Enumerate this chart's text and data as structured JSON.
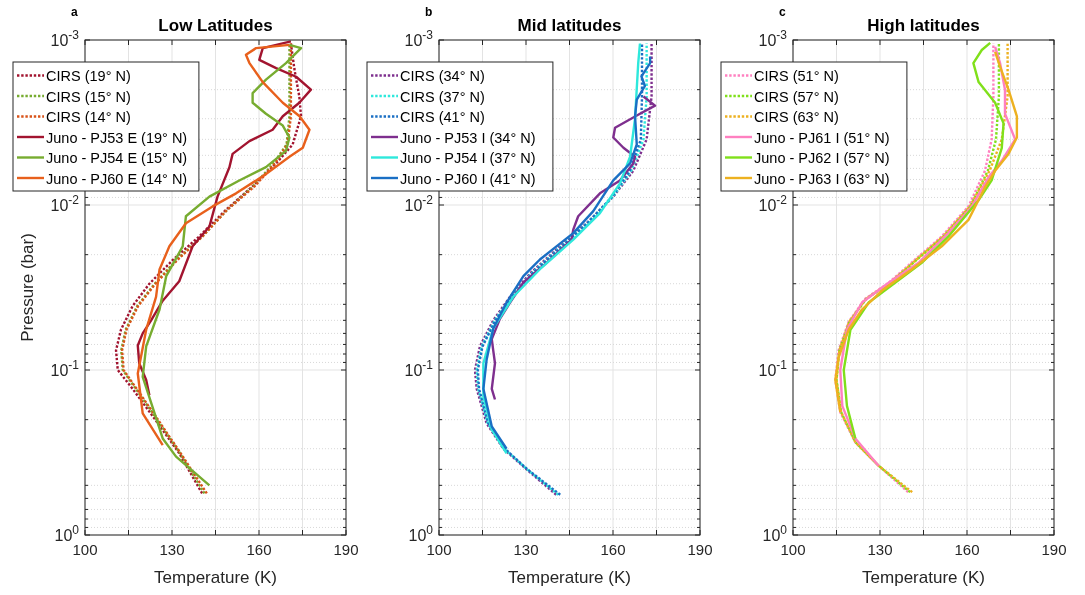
{
  "chart_data": [
    {
      "type": "line",
      "title": "Low Latitudes",
      "xlabel": "Temperature (K)",
      "ylabel": "Pressure (bar)",
      "annotations": [
        "a"
      ],
      "log": "y",
      "grid": true,
      "legend": "top left",
      "xlim": [
        100,
        190
      ],
      "xticks": [
        100,
        {
          "value": 115,
          "label": null
        },
        130,
        {
          "value": 145,
          "label": null
        },
        160,
        {
          "value": 175,
          "label": null
        },
        190
      ],
      "ylim": [
        1,
        0.001
      ],
      "yticks": [
        {
          "value": 0.001,
          "label": "10$^{-3}$"
        },
        {
          "value": 0.002,
          "label": null
        },
        {
          "value": 0.003,
          "label": null
        },
        {
          "value": 0.004,
          "label": null
        },
        {
          "value": 0.005,
          "label": null
        },
        {
          "value": 0.006,
          "label": null
        },
        {
          "value": 0.007,
          "label": null
        },
        {
          "value": 0.008,
          "label": null
        },
        {
          "value": 0.009,
          "label": null
        },
        {
          "value": 0.01,
          "label": "10$^{-2}$"
        },
        {
          "value": 0.02,
          "label": null
        },
        {
          "value": 0.03,
          "label": null
        },
        {
          "value": 0.04,
          "label": null
        },
        {
          "value": 0.05,
          "label": null
        },
        {
          "value": 0.06,
          "label": null
        },
        {
          "value": 0.07,
          "label": null
        },
        {
          "value": 0.08,
          "label": null
        },
        {
          "value": 0.09,
          "label": null
        },
        {
          "value": 0.1,
          "label": "10$^{-1}$"
        },
        {
          "value": 0.2,
          "label": null
        },
        {
          "value": 0.3,
          "label": null
        },
        {
          "value": 0.4,
          "label": null
        },
        {
          "value": 0.5,
          "label": null
        },
        {
          "value": 0.6,
          "label": null
        },
        {
          "value": 0.7,
          "label": null
        },
        {
          "value": 0.8,
          "label": null
        },
        {
          "value": 0.9,
          "label": null
        },
        {
          "value": 1,
          "label": "10$^{0}$"
        }
      ],
      "series": [
        {
          "name": "CIRS (19° N)",
          "color": "#a2142f",
          "line_style": "dotted",
          "x": [
            140.4,
            132.5,
            123.3,
            116.4,
            111.3,
            110.7,
            112.4,
            116.4,
            122.2,
            130.2,
            139.4,
            148.6,
            157.8,
            165.9,
            171.6,
            174.5,
            173.9,
            172.2,
            171
          ],
          "values": [
            0.56,
            0.32,
            0.19,
            0.13,
            0.1,
            0.076,
            0.057,
            0.041,
            0.03,
            0.0216,
            0.0155,
            0.0107,
            0.0077,
            0.0056,
            0.0043,
            0.0029,
            0.0022,
            0.0015,
            0.00105
          ]
        },
        {
          "name": "CIRS (15° N)",
          "color": "#77ac30",
          "line_style": "dotted",
          "x": [
            141.2,
            132.8,
            124,
            117.5,
            113,
            112.5,
            114,
            118,
            124,
            131.5,
            140.5,
            149,
            158,
            165,
            169.5,
            170.5,
            170.5,
            170.5,
            170.5
          ],
          "values": [
            0.56,
            0.32,
            0.19,
            0.13,
            0.1,
            0.076,
            0.057,
            0.041,
            0.03,
            0.0216,
            0.0155,
            0.0107,
            0.0077,
            0.0056,
            0.0043,
            0.0029,
            0.0022,
            0.0015,
            0.00105
          ]
        },
        {
          "name": "CIRS (14° N)",
          "color": "#d95319",
          "line_style": "dotted",
          "x": [
            142,
            133,
            124.3,
            117.8,
            113.3,
            112.8,
            114.3,
            118.3,
            124.3,
            131.8,
            140.5,
            149,
            158.5,
            165.5,
            169.8,
            171,
            171,
            171,
            171
          ],
          "values": [
            0.56,
            0.32,
            0.19,
            0.13,
            0.1,
            0.076,
            0.057,
            0.041,
            0.03,
            0.0216,
            0.0155,
            0.0107,
            0.0077,
            0.0056,
            0.0043,
            0.0029,
            0.0022,
            0.0015,
            0.00105
          ]
        },
        {
          "name": "Juno - PJ53 E (19° N)",
          "color": "#a2142f",
          "line_style": "solid",
          "x": [
            122.2,
            121.1,
            118.7,
            118.2,
            119.9,
            122.8,
            126.8,
            132.5,
            137.1,
            142.9,
            145.7,
            149.8,
            150.9,
            156.7,
            164.7,
            168.2,
            173.9,
            177.9,
            172.8,
            165.9,
            160.1,
            161.3,
            171
          ],
          "values": [
            0.142,
            0.115,
            0.091,
            0.071,
            0.06,
            0.05,
            0.038,
            0.029,
            0.0178,
            0.0135,
            0.0089,
            0.0059,
            0.0049,
            0.0041,
            0.0035,
            0.0029,
            0.0024,
            0.002,
            0.00167,
            0.00148,
            0.00132,
            0.00112,
            0.00102
          ]
        },
        {
          "name": "Juno - PJ54 E (15° N)",
          "color": "#77ac30",
          "line_style": "solid",
          "x": [
            142.9,
            131.4,
            126.8,
            124,
            119.9,
            121.1,
            125.7,
            128,
            133.7,
            134.8,
            142.9,
            153.2,
            162.4,
            169.3,
            170.5,
            168.2,
            162.4,
            157.8,
            157.8,
            162.4,
            169.3,
            174.5,
            170.5
          ],
          "values": [
            0.5,
            0.335,
            0.26,
            0.183,
            0.11,
            0.072,
            0.043,
            0.027,
            0.0178,
            0.0117,
            0.0089,
            0.0071,
            0.0059,
            0.0047,
            0.0039,
            0.0033,
            0.0028,
            0.0024,
            0.0021,
            0.00174,
            0.00138,
            0.00112,
            0.00107
          ]
        },
        {
          "name": "Juno - PJ60 E (14° N)",
          "color": "#e8601c",
          "line_style": "solid",
          "x": [
            126.8,
            119.9,
            118.2,
            121.1,
            124.5,
            125.7,
            129.1,
            134.8,
            144,
            152.1,
            162.4,
            170.5,
            175.1,
            177.4,
            174,
            168.2,
            161.3,
            156.7,
            155.5,
            159,
            170.5
          ],
          "values": [
            0.285,
            0.183,
            0.105,
            0.057,
            0.036,
            0.0246,
            0.0178,
            0.0129,
            0.0102,
            0.0085,
            0.0065,
            0.0051,
            0.0045,
            0.0035,
            0.0029,
            0.0024,
            0.0018,
            0.00138,
            0.00123,
            0.00112,
            0.00107
          ]
        }
      ]
    },
    {
      "type": "line",
      "title": "Mid latitudes",
      "xlabel": "Temperature (K)",
      "annotations": [
        "b"
      ],
      "log": "y",
      "grid": true,
      "legend": "top left",
      "xlim": [
        100,
        190
      ],
      "xticks": [
        100,
        {
          "value": 115,
          "label": null
        },
        130,
        {
          "value": 145,
          "label": null
        },
        160,
        {
          "value": 175,
          "label": null
        },
        190
      ],
      "ylim": [
        1,
        0.001
      ],
      "yticks": [
        {
          "value": 0.001,
          "label": "10$^{-3}$"
        },
        {
          "value": 0.002,
          "label": null
        },
        {
          "value": 0.003,
          "label": null
        },
        {
          "value": 0.004,
          "label": null
        },
        {
          "value": 0.005,
          "label": null
        },
        {
          "value": 0.006,
          "label": null
        },
        {
          "value": 0.007,
          "label": null
        },
        {
          "value": 0.008,
          "label": null
        },
        {
          "value": 0.009,
          "label": null
        },
        {
          "value": 0.01,
          "label": "10$^{-2}$"
        },
        {
          "value": 0.02,
          "label": null
        },
        {
          "value": 0.03,
          "label": null
        },
        {
          "value": 0.04,
          "label": null
        },
        {
          "value": 0.05,
          "label": null
        },
        {
          "value": 0.06,
          "label": null
        },
        {
          "value": 0.07,
          "label": null
        },
        {
          "value": 0.08,
          "label": null
        },
        {
          "value": 0.09,
          "label": null
        },
        {
          "value": 0.1,
          "label": "10$^{-1}$"
        },
        {
          "value": 0.2,
          "label": null
        },
        {
          "value": 0.3,
          "label": null
        },
        {
          "value": 0.4,
          "label": null
        },
        {
          "value": 0.5,
          "label": null
        },
        {
          "value": 0.6,
          "label": null
        },
        {
          "value": 0.7,
          "label": null
        },
        {
          "value": 0.8,
          "label": null
        },
        {
          "value": 0.9,
          "label": null
        },
        {
          "value": 1,
          "label": "10$^{0}$"
        }
      ],
      "series": [
        {
          "name": "CIRS (34° N)",
          "color": "#7e2f8e",
          "line_style": "dotted",
          "x": [
            140.4,
            130.2,
            122.2,
            116.4,
            113,
            112.4,
            114.1,
            118.7,
            124.5,
            131.4,
            141.7,
            150.9,
            160.1,
            167,
            171.6,
            173.3,
            173.3
          ],
          "values": [
            0.57,
            0.4,
            0.3,
            0.21,
            0.13,
            0.1,
            0.072,
            0.05,
            0.036,
            0.026,
            0.0178,
            0.0129,
            0.0089,
            0.0062,
            0.004,
            0.0022,
            0.00105
          ]
        },
        {
          "name": "CIRS (37° N)",
          "color": "#2ee8dc",
          "line_style": "dotted",
          "x": [
            141.1,
            130.4,
            122.5,
            116.8,
            113.5,
            113,
            114.7,
            119.2,
            125,
            131.9,
            142.2,
            151.2,
            160,
            166.3,
            170.5,
            171.6,
            171.6
          ],
          "values": [
            0.57,
            0.4,
            0.3,
            0.21,
            0.13,
            0.1,
            0.072,
            0.05,
            0.036,
            0.026,
            0.0178,
            0.0129,
            0.0089,
            0.0062,
            0.004,
            0.0022,
            0.00105
          ]
        },
        {
          "name": "CIRS (41° N)",
          "color": "#1a6fc4",
          "line_style": "dotted",
          "x": [
            141.8,
            130.5,
            122.7,
            117,
            113.8,
            113.4,
            115,
            119.5,
            125.3,
            132.2,
            142.4,
            151.2,
            159.7,
            165.8,
            169.6,
            170,
            170
          ],
          "values": [
            0.57,
            0.4,
            0.3,
            0.21,
            0.13,
            0.1,
            0.072,
            0.05,
            0.036,
            0.026,
            0.0178,
            0.0129,
            0.0089,
            0.0062,
            0.004,
            0.0022,
            0.00105
          ]
        },
        {
          "name": "Juno - PJ53 I (34° N)",
          "color": "#7e2f8e",
          "line_style": "solid",
          "x": [
            119.3,
            118.2,
            119.3,
            118.7,
            118.2,
            121,
            124.5,
            129.1,
            137.1,
            145.7,
            146.3,
            148,
            155.5,
            162.4,
            167,
            167.6,
            163.6,
            160.1,
            160.7,
            169.3,
            174.5,
            170.5
          ],
          "values": [
            0.151,
            0.13,
            0.091,
            0.076,
            0.065,
            0.049,
            0.039,
            0.0295,
            0.0224,
            0.0162,
            0.0141,
            0.0117,
            0.0085,
            0.0071,
            0.0056,
            0.0051,
            0.0045,
            0.0039,
            0.0034,
            0.0028,
            0.0025,
            0.0022
          ]
        },
        {
          "name": "Juno - PJ54 I (37° N)",
          "color": "#2ee8dc",
          "line_style": "solid",
          "x": [
            123.3,
            118.2,
            115.3,
            115.3,
            118.7,
            125.6,
            134.8,
            146.3,
            155.5,
            162.4,
            165.9,
            167.6,
            168.7,
            169.3
          ],
          "values": [
            0.32,
            0.23,
            0.145,
            0.091,
            0.056,
            0.036,
            0.0245,
            0.0162,
            0.0112,
            0.0074,
            0.0051,
            0.003,
            0.00138,
            0.00105
          ]
        },
        {
          "name": "Juno - PJ60 I (41° N)",
          "color": "#1a6fc4",
          "line_style": "solid",
          "x": [
            123.3,
            118.2,
            115.3,
            116.4,
            118.7,
            123.3,
            129.1,
            134.8,
            146.3,
            153.2,
            160.1,
            165.9,
            168.2,
            167.6,
            168.2,
            171,
            169.8,
            172.8,
            172.8
          ],
          "values": [
            0.3,
            0.22,
            0.13,
            0.087,
            0.056,
            0.039,
            0.027,
            0.0214,
            0.0148,
            0.0109,
            0.0071,
            0.0056,
            0.0043,
            0.0029,
            0.0023,
            0.0019,
            0.00166,
            0.00138,
            0.00126
          ]
        }
      ]
    },
    {
      "type": "line",
      "title": "High latitudes",
      "xlabel": "Temperature (K)",
      "annotations": [
        "c"
      ],
      "log": "y",
      "grid": true,
      "legend": "top left",
      "xlim": [
        100,
        190
      ],
      "xticks": [
        100,
        {
          "value": 115,
          "label": null
        },
        130,
        {
          "value": 145,
          "label": null
        },
        160,
        {
          "value": 175,
          "label": null
        },
        190
      ],
      "ylim": [
        1,
        0.001
      ],
      "yticks": [
        {
          "value": 0.001,
          "label": "10$^{-3}$"
        },
        {
          "value": 0.002,
          "label": null
        },
        {
          "value": 0.003,
          "label": null
        },
        {
          "value": 0.004,
          "label": null
        },
        {
          "value": 0.005,
          "label": null
        },
        {
          "value": 0.006,
          "label": null
        },
        {
          "value": 0.007,
          "label": null
        },
        {
          "value": 0.008,
          "label": null
        },
        {
          "value": 0.009,
          "label": null
        },
        {
          "value": 0.01,
          "label": "10$^{-2}$"
        },
        {
          "value": 0.02,
          "label": null
        },
        {
          "value": 0.03,
          "label": null
        },
        {
          "value": 0.04,
          "label": null
        },
        {
          "value": 0.05,
          "label": null
        },
        {
          "value": 0.06,
          "label": null
        },
        {
          "value": 0.07,
          "label": null
        },
        {
          "value": 0.08,
          "label": null
        },
        {
          "value": 0.09,
          "label": null
        },
        {
          "value": 0.1,
          "label": "10$^{-1}$"
        },
        {
          "value": 0.2,
          "label": null
        },
        {
          "value": 0.3,
          "label": null
        },
        {
          "value": 0.4,
          "label": null
        },
        {
          "value": 0.5,
          "label": null
        },
        {
          "value": 0.6,
          "label": null
        },
        {
          "value": 0.7,
          "label": null
        },
        {
          "value": 0.8,
          "label": null
        },
        {
          "value": 0.9,
          "label": null
        },
        {
          "value": 1,
          "label": "10$^{0}$"
        }
      ],
      "series": [
        {
          "name": "CIRS (51° N)",
          "color": "#ff80c0",
          "line_style": "dotted",
          "x": [
            139.7,
            129.5,
            121.5,
            116.3,
            114.6,
            115.7,
            119.2,
            124.9,
            133,
            142.1,
            151.3,
            160.5,
            166.2,
            168.5,
            169.1,
            169.1
          ],
          "values": [
            0.55,
            0.38,
            0.275,
            0.18,
            0.115,
            0.076,
            0.051,
            0.037,
            0.0296,
            0.0214,
            0.0155,
            0.0102,
            0.0062,
            0.004,
            0.0022,
            0.00105
          ]
        },
        {
          "name": "CIRS (57° N)",
          "color": "#80e01a",
          "line_style": "dotted",
          "x": [
            140.4,
            129.5,
            121.6,
            116.6,
            115,
            116,
            119.5,
            125.3,
            133.6,
            142.8,
            152,
            161.2,
            167.2,
            170,
            171,
            171
          ],
          "values": [
            0.55,
            0.38,
            0.275,
            0.18,
            0.115,
            0.076,
            0.051,
            0.037,
            0.0296,
            0.0214,
            0.0155,
            0.0102,
            0.0062,
            0.004,
            0.0022,
            0.00105
          ]
        },
        {
          "name": "CIRS (63° N)",
          "color": "#edb120",
          "line_style": "dotted",
          "x": [
            141.1,
            129.5,
            121.6,
            116.6,
            115,
            116,
            119.4,
            125.2,
            133.4,
            142.6,
            151.8,
            161,
            167.8,
            172,
            174,
            174
          ],
          "values": [
            0.55,
            0.38,
            0.275,
            0.18,
            0.115,
            0.076,
            0.051,
            0.037,
            0.0296,
            0.0214,
            0.0155,
            0.0102,
            0.0062,
            0.004,
            0.0022,
            0.00105
          ]
        },
        {
          "name": "Juno - PJ61 I (51° N)",
          "color": "#ff80c0",
          "line_style": "solid",
          "x": [
            129.5,
            121.5,
            117,
            116.3,
            118.6,
            123.8,
            133,
            143.3,
            153.6,
            161.7,
            167.4,
            172,
            176.6,
            173.1,
            173.1,
            171.4,
            169.7
          ],
          "values": [
            0.38,
            0.26,
            0.165,
            0.1,
            0.057,
            0.039,
            0.0296,
            0.0224,
            0.0148,
            0.0102,
            0.0068,
            0.0054,
            0.004,
            0.0028,
            0.002,
            0.00138,
            0.0011
          ]
        },
        {
          "name": "Juno - PJ62 I (57° N)",
          "color": "#80e01a",
          "line_style": "solid",
          "x": [
            121.5,
            118.6,
            117.5,
            119.8,
            126.1,
            135.2,
            144.4,
            153.6,
            163.9,
            168.5,
            172,
            172.6,
            169.7,
            164,
            162.2,
            165.1,
            168
          ],
          "values": [
            0.26,
            0.165,
            0.1,
            0.057,
            0.039,
            0.0296,
            0.0224,
            0.0155,
            0.0094,
            0.0071,
            0.0045,
            0.0032,
            0.0024,
            0.0018,
            0.00138,
            0.00115,
            0.00104
          ]
        },
        {
          "name": "Juno - PJ63 I (63° N)",
          "color": "#edb120",
          "line_style": "solid",
          "x": [
            116.3,
            114.6,
            115.7,
            119.2,
            123.8,
            130.7,
            141,
            151.3,
            160.5,
            166.2,
            169.7,
            174.3,
            177.2,
            177.2,
            174.3,
            171.4,
            169.7
          ],
          "values": [
            0.18,
            0.115,
            0.084,
            0.057,
            0.043,
            0.033,
            0.0245,
            0.0178,
            0.0123,
            0.0078,
            0.0062,
            0.0049,
            0.0039,
            0.0029,
            0.002,
            0.00145,
            0.00118
          ]
        }
      ]
    }
  ]
}
